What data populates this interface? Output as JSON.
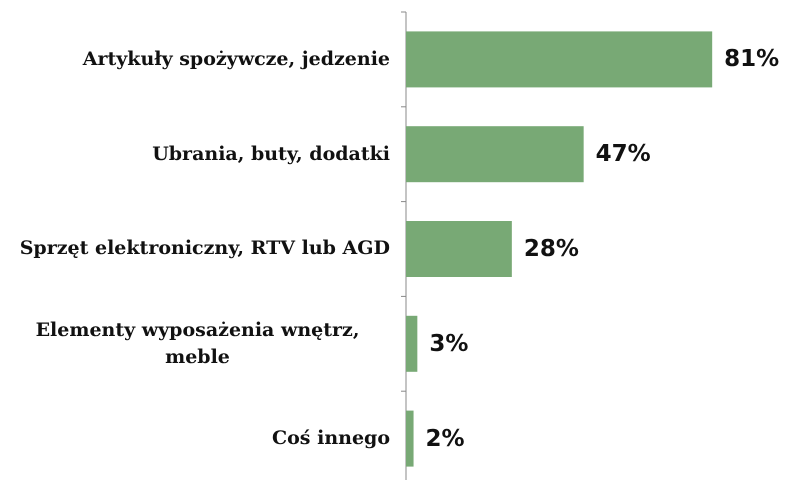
{
  "chart_data": {
    "type": "bar",
    "orientation": "horizontal",
    "categories": [
      "Artykuły spożywcze, jedzenie",
      "Ubrania, buty, dodatki",
      "Sprzęt elektroniczny, RTV lub AGD",
      "Elementy wyposażenia wnętrz, meble",
      "Coś innego"
    ],
    "values": [
      81,
      47,
      28,
      3,
      2
    ],
    "value_labels": [
      "81%",
      "47%",
      "28%",
      "3%",
      "2%"
    ],
    "color": "#78a975",
    "xlim": [
      0,
      100
    ]
  }
}
